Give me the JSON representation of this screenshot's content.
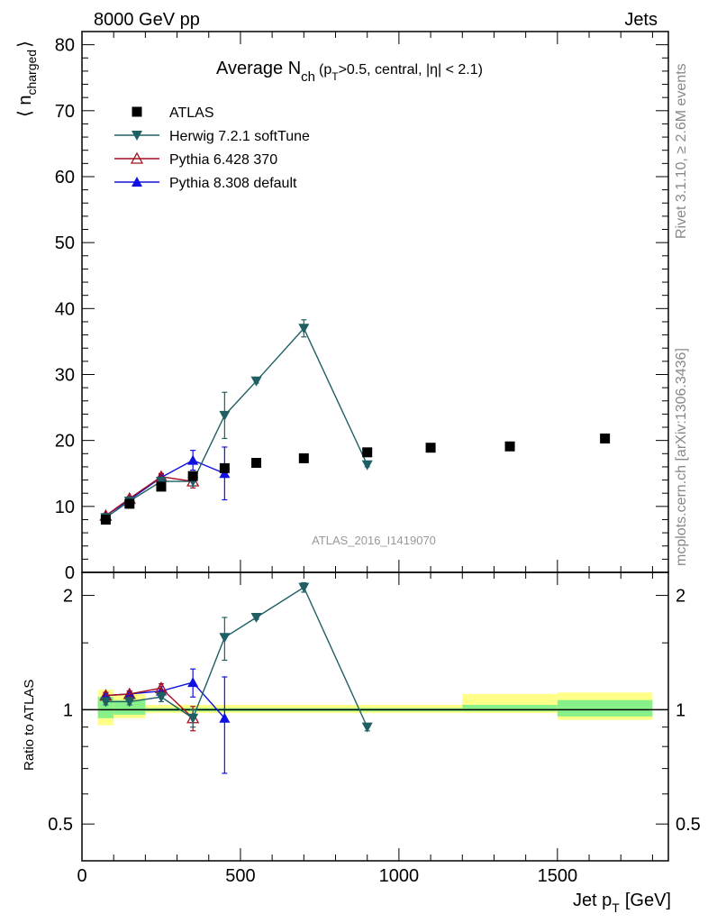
{
  "header": {
    "left": "8000 GeV pp",
    "right": "Jets",
    "side_top": "Rivet 3.1.10, ≥ 2.6M events",
    "side_bottom": "mcplots.cern.ch [arXiv:1306.3436]",
    "watermark": "ATLAS_2016_I1419070"
  },
  "colors": {
    "herwig": "#1f5f64",
    "pythia6": "#a01020",
    "pythia8": "#1010e0",
    "band_inner": "#88f088",
    "band_outer": "#ffff88"
  },
  "chart_data": [
    {
      "type": "scatter",
      "title": "Average N",
      "title_sub": "ch",
      "title_cond": "(p",
      "title_cond_sub": "T",
      "title_cond_rest": ">0.5, central, |η| < 2.1)",
      "ylabel": "⟨ n",
      "ylabel_sub": "charged",
      "ylabel_close": "⟩",
      "xlim": [
        0,
        1850
      ],
      "ylim": [
        0,
        82
      ],
      "yticks": [
        0,
        10,
        20,
        30,
        40,
        50,
        60,
        70,
        80
      ],
      "legend_position": "top-left",
      "series": [
        {
          "name": "ATLAS",
          "marker": "square",
          "x": [
            75,
            150,
            250,
            350,
            450,
            550,
            700,
            900,
            1100,
            1350,
            1650
          ],
          "y": [
            8.0,
            10.4,
            13.0,
            14.6,
            15.8,
            16.6,
            17.3,
            18.2,
            18.9,
            19.1,
            20.3
          ],
          "err": [
            0,
            0,
            0,
            0,
            0,
            0,
            0,
            0,
            0,
            0,
            0
          ]
        },
        {
          "name": "Herwig 7.2.1 softTune",
          "marker": "triangle-down",
          "x": [
            75,
            150,
            250,
            350,
            450,
            550,
            700,
            900
          ],
          "y": [
            8.3,
            10.8,
            13.8,
            13.8,
            23.8,
            29.0,
            37.0,
            16.3
          ],
          "err": [
            0.3,
            0.3,
            0.5,
            0.7,
            3.5,
            0.3,
            1.3,
            0.3
          ]
        },
        {
          "name": "Pythia 6.428 370",
          "marker": "triangle-up-open",
          "x": [
            75,
            150,
            250,
            350
          ],
          "y": [
            8.6,
            11.2,
            14.5,
            13.8
          ],
          "err": [
            0.3,
            0.3,
            0.5,
            1.0
          ]
        },
        {
          "name": "Pythia 8.308 default",
          "marker": "triangle-up",
          "x": [
            75,
            150,
            250,
            350,
            450
          ],
          "y": [
            8.6,
            11.0,
            14.4,
            17.0,
            15.0
          ],
          "err": [
            0.3,
            0.3,
            0.5,
            1.5,
            4.0
          ]
        }
      ]
    },
    {
      "type": "scatter",
      "ylabel": "Ratio to ATLAS",
      "xlabel": "Jet p",
      "xlabel_sub": "T",
      "xlabel_unit": "[GeV]",
      "xlim": [
        0,
        1850
      ],
      "xticks": [
        0,
        500,
        1000,
        1500
      ],
      "ylim": [
        0.4,
        2.3
      ],
      "yticks": [
        0.5,
        1,
        2
      ],
      "yscale": "log",
      "bands": [
        {
          "x0": 50,
          "x1": 100,
          "inner": [
            0.95,
            1.08
          ],
          "outer": [
            0.91,
            1.13
          ]
        },
        {
          "x0": 100,
          "x1": 200,
          "inner": [
            0.97,
            1.06
          ],
          "outer": [
            0.95,
            1.1
          ]
        },
        {
          "x0": 200,
          "x1": 1200,
          "inner": [
            0.99,
            1.01
          ],
          "outer": [
            0.98,
            1.03
          ]
        },
        {
          "x0": 1200,
          "x1": 1500,
          "inner": [
            0.99,
            1.03
          ],
          "outer": [
            0.98,
            1.1
          ]
        },
        {
          "x0": 1500,
          "x1": 1800,
          "inner": [
            0.96,
            1.06
          ],
          "outer": [
            0.94,
            1.11
          ]
        }
      ],
      "series": [
        {
          "name": "Herwig 7.2.1 softTune",
          "x": [
            75,
            150,
            250,
            350,
            450,
            550,
            700,
            900
          ],
          "y": [
            1.05,
            1.05,
            1.08,
            0.95,
            1.55,
            1.75,
            2.1,
            0.9
          ],
          "err": [
            0.02,
            0.02,
            0.03,
            0.05,
            0.2,
            0.02,
            0.06,
            0.02
          ]
        },
        {
          "name": "Pythia 6.428 370",
          "x": [
            75,
            150,
            250,
            350
          ],
          "y": [
            1.09,
            1.1,
            1.14,
            0.95
          ],
          "err": [
            0.02,
            0.02,
            0.03,
            0.07
          ]
        },
        {
          "name": "Pythia 8.308 default",
          "x": [
            75,
            150,
            250,
            350,
            450
          ],
          "y": [
            1.09,
            1.1,
            1.12,
            1.18,
            0.95
          ],
          "err": [
            0.02,
            0.02,
            0.03,
            0.1,
            0.27
          ]
        }
      ]
    }
  ]
}
